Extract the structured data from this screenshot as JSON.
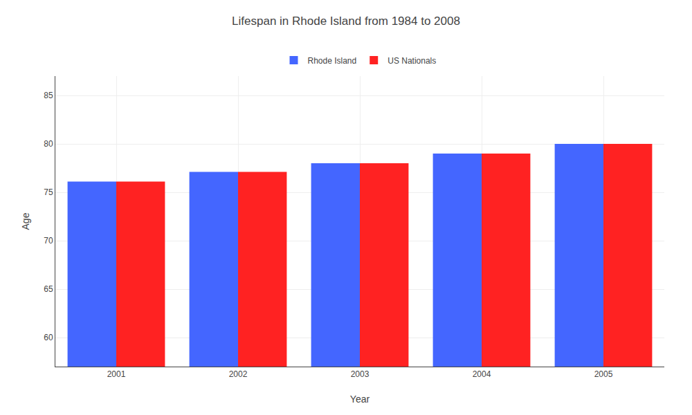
{
  "chart_data": {
    "type": "bar",
    "title": "Lifespan in Rhode Island from 1984 to 2008",
    "x_label": "Year",
    "y_label": "Age",
    "categories": [
      "2001",
      "2002",
      "2003",
      "2004",
      "2005"
    ],
    "series": [
      {
        "name": "Rhode Island",
        "color": "#4466ff",
        "values": [
          76.1,
          77.1,
          78.0,
          79.0,
          80.0
        ]
      },
      {
        "name": "US Nationals",
        "color": "#ff2222",
        "values": [
          76.1,
          77.1,
          78.0,
          79.0,
          80.0
        ]
      }
    ],
    "ylim": [
      57,
      87
    ],
    "yticks": [
      60,
      65,
      70,
      75,
      80,
      85
    ],
    "grid": true,
    "legend": "top"
  }
}
